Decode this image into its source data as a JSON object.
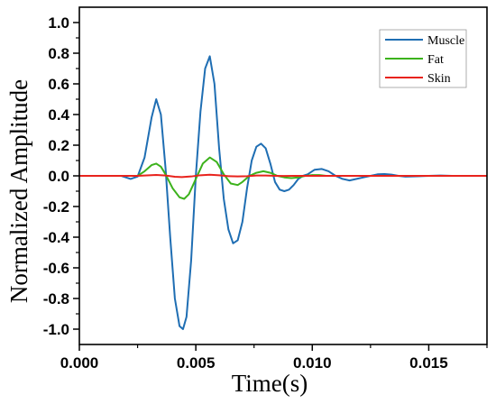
{
  "chart_data": {
    "type": "line",
    "title": "",
    "xlabel": "Time(s)",
    "ylabel": "Normalized Amplitude",
    "xlim": [
      0,
      0.0175
    ],
    "ylim": [
      -1.1,
      1.1
    ],
    "xticks": [
      0.0,
      0.005,
      0.01,
      0.015
    ],
    "xtick_labels": [
      "0.000",
      "0.005",
      "0.010",
      "0.015"
    ],
    "yticks": [
      -1.0,
      -0.8,
      -0.6,
      -0.4,
      -0.2,
      0.0,
      0.2,
      0.4,
      0.6,
      0.8,
      1.0
    ],
    "ytick_labels": [
      "-1.0",
      "-0.8",
      "-0.6",
      "-0.4",
      "-0.2",
      "0.0",
      "0.2",
      "0.4",
      "0.6",
      "0.8",
      "1.0"
    ],
    "grid": false,
    "legend_position": "top-right",
    "series": [
      {
        "name": "Muscle",
        "color": "#1f6eb3",
        "x": [
          0,
          0.0018,
          0.0022,
          0.0025,
          0.0028,
          0.0031,
          0.0033,
          0.0035,
          0.0037,
          0.0039,
          0.0041,
          0.0043,
          0.00445,
          0.0046,
          0.0048,
          0.005,
          0.0052,
          0.0054,
          0.0056,
          0.0058,
          0.006,
          0.0062,
          0.0064,
          0.0066,
          0.0068,
          0.007,
          0.0072,
          0.0074,
          0.0076,
          0.0078,
          0.008,
          0.0082,
          0.0084,
          0.0086,
          0.0088,
          0.009,
          0.0092,
          0.0094,
          0.0096,
          0.0098,
          0.0101,
          0.0104,
          0.0107,
          0.011,
          0.0113,
          0.0116,
          0.0119,
          0.0122,
          0.0125,
          0.0128,
          0.0131,
          0.0134,
          0.0137,
          0.014,
          0.0145,
          0.015,
          0.0155,
          0.016,
          0.0175
        ],
        "y": [
          0,
          0,
          -0.02,
          -0.005,
          0.12,
          0.38,
          0.5,
          0.4,
          0.05,
          -0.4,
          -0.8,
          -0.98,
          -1.0,
          -0.92,
          -0.55,
          0.0,
          0.42,
          0.7,
          0.78,
          0.6,
          0.18,
          -0.15,
          -0.35,
          -0.44,
          -0.42,
          -0.3,
          -0.08,
          0.1,
          0.19,
          0.21,
          0.18,
          0.08,
          -0.04,
          -0.09,
          -0.1,
          -0.09,
          -0.06,
          -0.02,
          0.0,
          0.01,
          0.04,
          0.045,
          0.03,
          0.0,
          -0.02,
          -0.03,
          -0.02,
          -0.01,
          0.0,
          0.01,
          0.012,
          0.008,
          0.0,
          -0.005,
          -0.003,
          0.0,
          0.002,
          0.0,
          0.0
        ]
      },
      {
        "name": "Fat",
        "color": "#3cb21c",
        "x": [
          0,
          0.0025,
          0.0028,
          0.0031,
          0.0033,
          0.0035,
          0.0037,
          0.004,
          0.0043,
          0.0045,
          0.0047,
          0.005,
          0.0053,
          0.0056,
          0.0059,
          0.0062,
          0.0065,
          0.0068,
          0.007,
          0.0073,
          0.0076,
          0.0079,
          0.0082,
          0.0085,
          0.0088,
          0.0091,
          0.0094,
          0.0097,
          0.01,
          0.0103,
          0.0106,
          0.011,
          0.0175
        ],
        "y": [
          0,
          0,
          0.03,
          0.07,
          0.08,
          0.06,
          0.01,
          -0.08,
          -0.14,
          -0.15,
          -0.12,
          -0.02,
          0.08,
          0.12,
          0.09,
          0.01,
          -0.05,
          -0.06,
          -0.04,
          0.0,
          0.02,
          0.03,
          0.02,
          0.0,
          -0.01,
          -0.015,
          -0.01,
          0.0,
          0.005,
          0.005,
          0.0,
          0.0,
          0.0
        ]
      },
      {
        "name": "Skin",
        "color": "#e8231d",
        "x": [
          0,
          0.0025,
          0.003,
          0.0033,
          0.0037,
          0.0041,
          0.0044,
          0.0048,
          0.0052,
          0.0056,
          0.006,
          0.0064,
          0.0068,
          0.0072,
          0.0076,
          0.008,
          0.0084,
          0.0088,
          0.0092,
          0.0175
        ],
        "y": [
          0,
          0,
          0.004,
          0.006,
          0.002,
          -0.006,
          -0.008,
          -0.004,
          0.004,
          0.007,
          0.004,
          -0.002,
          -0.004,
          -0.002,
          0.002,
          0.002,
          0.0,
          -0.001,
          0.0,
          0.0
        ]
      }
    ]
  }
}
